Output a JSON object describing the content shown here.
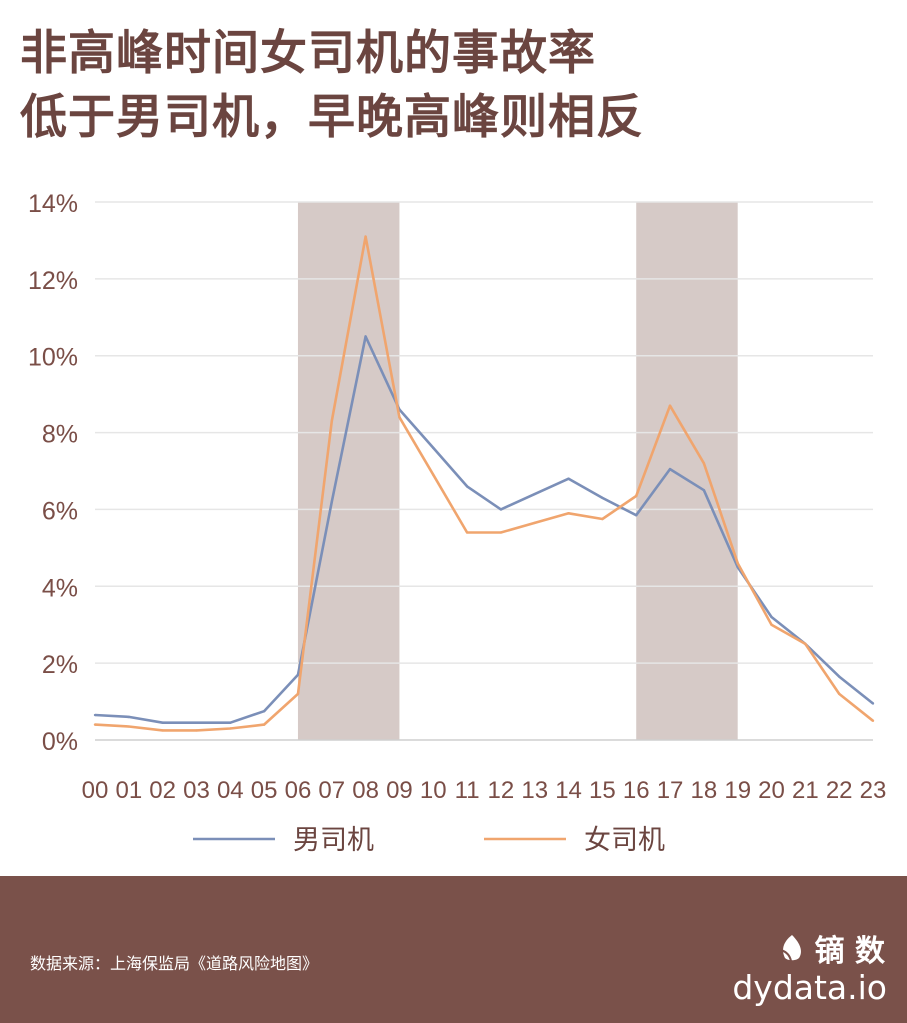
{
  "title": {
    "line1": "非高峰时间女司机的事故率",
    "line2": "低于男司机，早晚高峰则相反"
  },
  "chart_data": {
    "type": "line",
    "x": [
      "00",
      "01",
      "02",
      "03",
      "04",
      "05",
      "06",
      "07",
      "08",
      "09",
      "10",
      "11",
      "12",
      "13",
      "14",
      "15",
      "16",
      "17",
      "18",
      "19",
      "20",
      "21",
      "22",
      "23"
    ],
    "y_ticks": [
      "0%",
      "2%",
      "4%",
      "6%",
      "8%",
      "10%",
      "12%",
      "14%"
    ],
    "ylim": [
      0,
      14
    ],
    "grid": true,
    "legend_position": "bottom",
    "highlight_ranges": [
      [
        "06",
        "09"
      ],
      [
        "16",
        "19"
      ]
    ],
    "series": [
      {
        "name": "男司机",
        "color": "#7b8fb8",
        "values": [
          0.65,
          0.6,
          0.45,
          0.45,
          0.45,
          0.75,
          1.7,
          6.2,
          10.5,
          8.6,
          7.6,
          6.6,
          6.0,
          6.4,
          6.8,
          6.3,
          5.85,
          7.05,
          6.5,
          4.5,
          3.2,
          2.5,
          1.65,
          0.95
        ]
      },
      {
        "name": "女司机",
        "color": "#f0a56e",
        "values": [
          0.4,
          0.35,
          0.25,
          0.25,
          0.3,
          0.4,
          1.2,
          8.3,
          13.1,
          8.4,
          6.9,
          5.4,
          5.4,
          5.65,
          5.9,
          5.75,
          6.35,
          8.7,
          7.2,
          4.6,
          3.0,
          2.5,
          1.2,
          0.5
        ]
      }
    ],
    "colors": {
      "highlight": "#d6cac7",
      "grid": "#e6e6e6",
      "tick_text": "#7a4e47",
      "axis": "#cfcfcf"
    }
  },
  "footer": {
    "source": "数据来源：上海保监局《道路风险地图》",
    "brand": "镝 数",
    "brand_icon": "leaf-icon",
    "domain": "dydata.io",
    "background": "#7a514a"
  }
}
